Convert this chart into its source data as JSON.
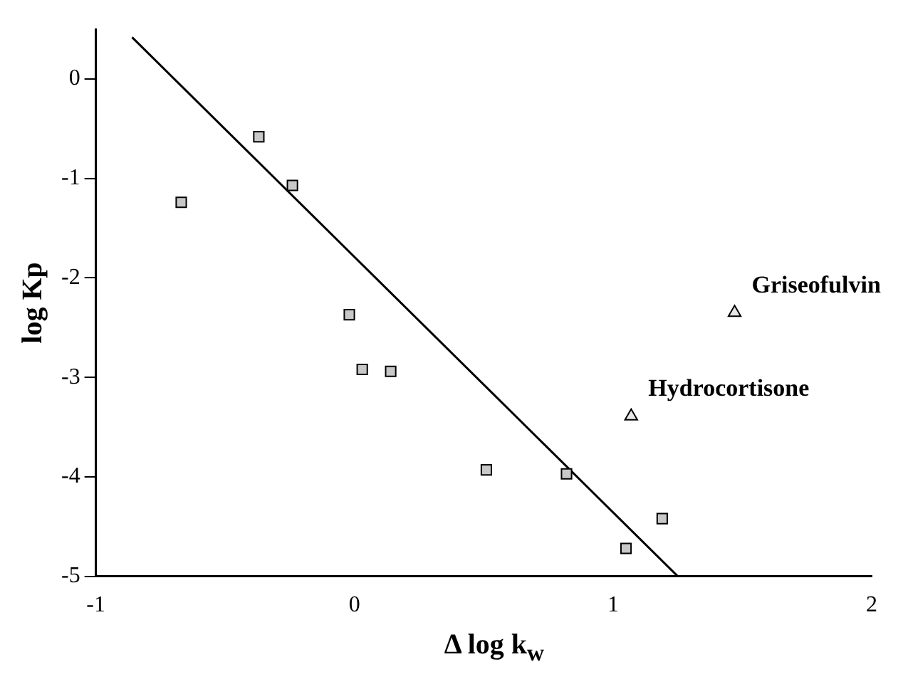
{
  "chart_data": {
    "type": "scatter",
    "xlabel": "Δ log k$_{w}$",
    "ylabel": "log Kp",
    "xlim": [
      -1,
      2
    ],
    "ylim": [
      -5,
      0.5
    ],
    "xticks": [
      -1,
      0,
      1,
      2
    ],
    "yticks": [
      0,
      -1,
      -2,
      -3,
      -4,
      -5
    ],
    "grid": false,
    "legend": false,
    "series": [
      {
        "marker": "square",
        "color": "#c8c8c8",
        "x": [
          -0.67,
          -0.37,
          -0.24,
          -0.02,
          0.03,
          0.14,
          0.51,
          0.82,
          1.19,
          1.05
        ],
        "values": [
          -1.24,
          -0.58,
          -1.07,
          -2.37,
          -2.92,
          -2.94,
          -3.93,
          -3.97,
          -4.42,
          -4.72
        ]
      },
      {
        "marker": "triangle",
        "color": "#e8e8e8",
        "x": [
          1.07,
          1.47
        ],
        "values": [
          -3.39,
          -2.35
        ]
      },
      {
        "type": "line",
        "marker": "none",
        "line_style": "solid",
        "color": "#000000",
        "x": [
          -0.86,
          1.25
        ],
        "values": [
          0.42,
          -5
        ]
      }
    ],
    "annotations": [
      {
        "text": "Hydrocortisone",
        "x": 1.07,
        "y": -3.39
      },
      {
        "text": "Griseofulvin",
        "x": 1.47,
        "y": -2.35
      }
    ]
  }
}
